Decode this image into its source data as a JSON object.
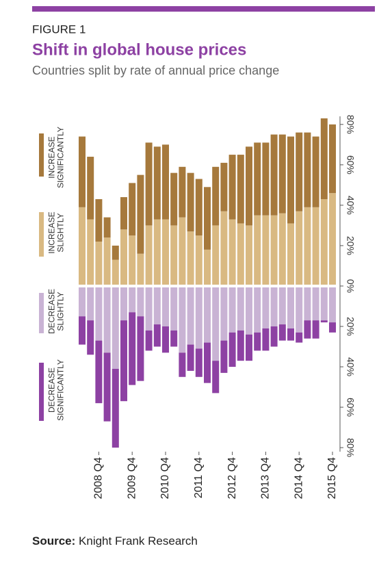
{
  "chart_data": {
    "type": "diverging-stacked-bar",
    "figure_label": "FIGURE 1",
    "title": "Shift in global house prices",
    "subtitle": "Countries split by rate of annual price change",
    "categories": [
      null,
      null,
      "2008 Q4",
      null,
      null,
      null,
      "2009 Q4",
      null,
      null,
      null,
      "2010 Q4",
      null,
      null,
      null,
      "2011 Q4",
      null,
      null,
      null,
      "2012 Q4",
      null,
      null,
      null,
      "2013 Q4",
      null,
      null,
      null,
      "2014 Q4",
      null,
      null,
      null,
      "2015 Q4"
    ],
    "series": [
      {
        "name": "INCREASE SLIGHTLY",
        "color": "#d9b982",
        "values": [
          39,
          33,
          22,
          24,
          13,
          28,
          25,
          16,
          30,
          33,
          33,
          30,
          34,
          27,
          25,
          18,
          30,
          37,
          33,
          31,
          30,
          35,
          35,
          35,
          36,
          31,
          37,
          39,
          39,
          43,
          46
        ]
      },
      {
        "name": "INCREASE SIGNIFICANTLY",
        "color": "#a6793c",
        "values": [
          35,
          31,
          21,
          10,
          7,
          16,
          26,
          39,
          41,
          36,
          37,
          26,
          25,
          29,
          28,
          31,
          29,
          24,
          32,
          34,
          39,
          36,
          36,
          40,
          39,
          43,
          39,
          37,
          35,
          40,
          34
        ]
      },
      {
        "name": "DECREASE SLIGHTLY",
        "color": "#c9b3d4",
        "values": [
          -15,
          -17,
          -27,
          -33,
          -41,
          -17,
          -13,
          -15,
          -22,
          -19,
          -20,
          -22,
          -33,
          -29,
          -31,
          -28,
          -37,
          -27,
          -23,
          -22,
          -24,
          -23,
          -21,
          -20,
          -19,
          -21,
          -23,
          -17,
          -17,
          -17,
          -18
        ]
      },
      {
        "name": "DECREASE SIGNIFICANTLY",
        "color": "#8d41a3",
        "values": [
          -14,
          -17,
          -31,
          -34,
          -39,
          -40,
          -36,
          -32,
          -10,
          -11,
          -13,
          -8,
          -12,
          -13,
          -14,
          -20,
          -16,
          -16,
          -17,
          -15,
          -13,
          -9,
          -11,
          -10,
          -8,
          -6,
          -5,
          -9,
          -9,
          -1,
          -5
        ]
      }
    ],
    "ylim": [
      -82,
      84
    ],
    "yticks": [
      {
        "value": 80,
        "label": "80%"
      },
      {
        "value": 60,
        "label": "60%"
      },
      {
        "value": 40,
        "label": "40%"
      },
      {
        "value": 20,
        "label": "20%"
      },
      {
        "value": 0,
        "label": "0%"
      },
      {
        "value": -20,
        "label": "20%"
      },
      {
        "value": -40,
        "label": "40%"
      },
      {
        "value": -60,
        "label": "60%"
      },
      {
        "value": -80,
        "label": "80%"
      }
    ],
    "source_label": "Source:",
    "source": "Knight Frank Research"
  }
}
